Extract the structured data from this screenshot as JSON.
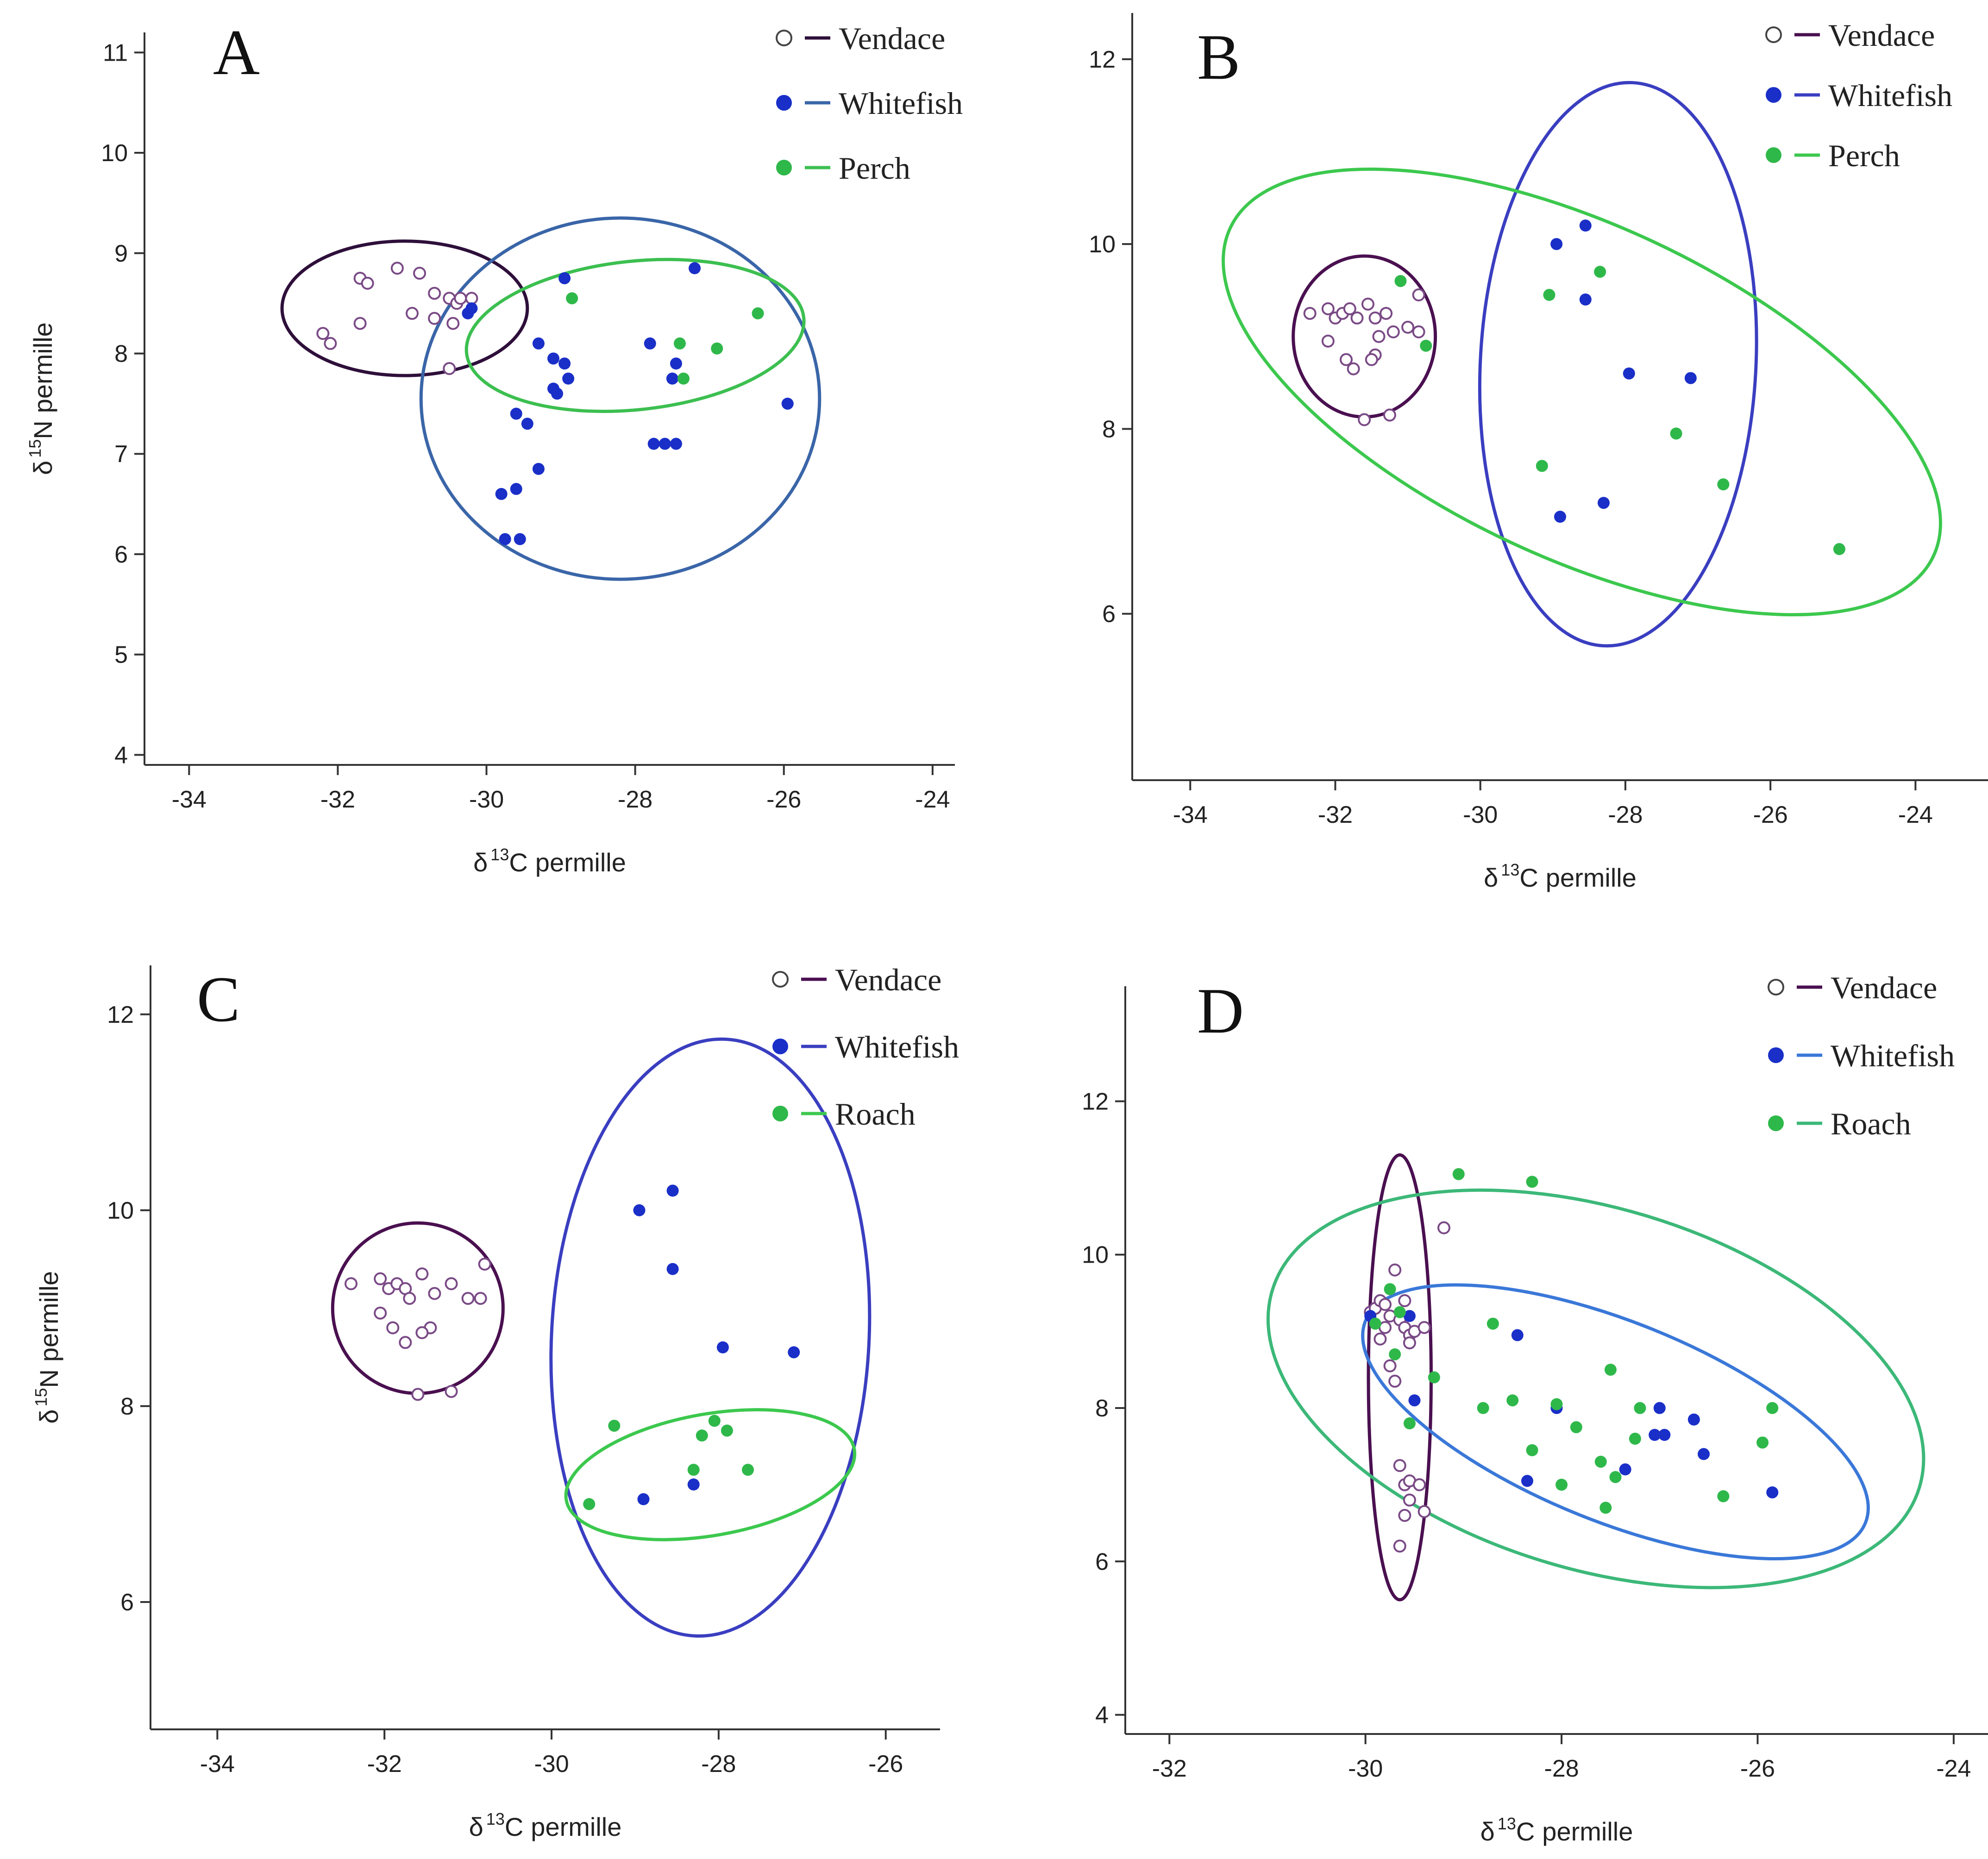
{
  "chart_data": [
    {
      "type": "scatter",
      "panel": "A",
      "xlabel": "permille",
      "ylabel": "permille",
      "xlabel_symbol": "δ",
      "xlabel_isotope_mass": "13",
      "xlabel_element": "C",
      "ylabel_symbol": "δ",
      "ylabel_isotope_mass": "15",
      "ylabel_element": "N",
      "xlim": [
        -34.6,
        -23.7
      ],
      "ylim": [
        3.9,
        11.2
      ],
      "xticks": [
        -34,
        -32,
        -30,
        -28,
        -26,
        -24
      ],
      "yticks": [
        4,
        5,
        6,
        7,
        8,
        9,
        10,
        11
      ],
      "legend_position": "top-right",
      "series": [
        {
          "name": "Vendace",
          "marker": "open",
          "color": "#7a4a86",
          "ellipse_color": "#2e0f3a",
          "ellipse": {
            "cx": -31.1,
            "cy": 8.45,
            "rx": 1.65,
            "ry": 0.67,
            "angle": 0
          },
          "points": [
            [
              -32.2,
              8.2
            ],
            [
              -32.1,
              8.1
            ],
            [
              -31.7,
              8.75
            ],
            [
              -31.6,
              8.7
            ],
            [
              -31.7,
              8.3
            ],
            [
              -31.2,
              8.85
            ],
            [
              -31.0,
              8.4
            ],
            [
              -30.9,
              8.8
            ],
            [
              -30.7,
              8.35
            ],
            [
              -30.7,
              8.6
            ],
            [
              -30.5,
              8.55
            ],
            [
              -30.45,
              8.3
            ],
            [
              -30.4,
              8.5
            ],
            [
              -30.35,
              8.55
            ],
            [
              -30.2,
              8.55
            ],
            [
              -30.5,
              7.85
            ]
          ]
        },
        {
          "name": "Whitefish",
          "marker": "filled",
          "color": "#1a2fc8",
          "ellipse_color": "#3a65a8",
          "ellipse": {
            "cx": -28.2,
            "cy": 7.55,
            "rx": 2.68,
            "ry": 1.8,
            "angle": 0
          },
          "points": [
            [
              -30.25,
              8.4
            ],
            [
              -30.2,
              8.45
            ],
            [
              -28.95,
              8.75
            ],
            [
              -29.3,
              8.1
            ],
            [
              -29.1,
              7.95
            ],
            [
              -28.95,
              7.9
            ],
            [
              -28.9,
              7.75
            ],
            [
              -29.1,
              7.65
            ],
            [
              -29.05,
              7.6
            ],
            [
              -29.6,
              7.4
            ],
            [
              -29.45,
              7.3
            ],
            [
              -29.3,
              6.85
            ],
            [
              -29.6,
              6.65
            ],
            [
              -29.8,
              6.6
            ],
            [
              -29.75,
              6.15
            ],
            [
              -29.55,
              6.15
            ],
            [
              -27.8,
              8.1
            ],
            [
              -27.45,
              7.9
            ],
            [
              -27.5,
              7.75
            ],
            [
              -27.75,
              7.1
            ],
            [
              -27.6,
              7.1
            ],
            [
              -27.45,
              7.1
            ],
            [
              -27.2,
              8.85
            ],
            [
              -25.95,
              7.5
            ]
          ]
        },
        {
          "name": "Perch",
          "marker": "filled",
          "color": "#2fb84a",
          "ellipse_color": "#3cbf50",
          "ellipse": {
            "cx": -28.0,
            "cy": 8.18,
            "rx": 2.28,
            "ry": 0.74,
            "angle": -6
          },
          "points": [
            [
              -28.85,
              8.55
            ],
            [
              -27.4,
              8.1
            ],
            [
              -27.35,
              7.75
            ],
            [
              -26.9,
              8.05
            ],
            [
              -26.35,
              8.4
            ]
          ]
        }
      ]
    },
    {
      "type": "scatter",
      "panel": "B",
      "xlabel": "permille",
      "ylabel": "",
      "xlabel_symbol": "δ",
      "xlabel_isotope_mass": "13",
      "xlabel_element": "C",
      "xlim": [
        -34.8,
        -23.0
      ],
      "ylim": [
        4.2,
        12.5
      ],
      "xticks": [
        -34,
        -32,
        -30,
        -28,
        -26,
        -24
      ],
      "yticks": [
        6,
        8,
        10,
        12
      ],
      "legend_position": "top-right",
      "series": [
        {
          "name": "Vendace",
          "marker": "open",
          "color": "#7a4a86",
          "ellipse_color": "#4a1050",
          "ellipse": {
            "cx": -31.6,
            "cy": 9.0,
            "rx": 0.98,
            "ry": 0.87,
            "angle": 0
          },
          "points": [
            [
              -32.35,
              9.25
            ],
            [
              -32.1,
              9.3
            ],
            [
              -32.0,
              9.2
            ],
            [
              -31.9,
              9.25
            ],
            [
              -31.8,
              9.3
            ],
            [
              -31.7,
              9.2
            ],
            [
              -31.55,
              9.35
            ],
            [
              -31.45,
              9.2
            ],
            [
              -31.3,
              9.25
            ],
            [
              -31.2,
              9.05
            ],
            [
              -31.0,
              9.1
            ],
            [
              -30.85,
              9.05
            ],
            [
              -30.85,
              9.45
            ],
            [
              -31.4,
              9.0
            ],
            [
              -31.45,
              8.8
            ],
            [
              -31.5,
              8.75
            ],
            [
              -31.85,
              8.75
            ],
            [
              -31.75,
              8.65
            ],
            [
              -32.1,
              8.95
            ],
            [
              -31.25,
              8.15
            ],
            [
              -31.6,
              8.1
            ]
          ]
        },
        {
          "name": "Whitefish",
          "marker": "filled",
          "color": "#1a2fc8",
          "ellipse_color": "#3a3ec0",
          "ellipse": {
            "cx": -28.1,
            "cy": 8.7,
            "rx": 1.9,
            "ry": 3.05,
            "angle": 3
          },
          "points": [
            [
              -28.95,
              10.0
            ],
            [
              -28.55,
              10.2
            ],
            [
              -28.55,
              9.4
            ],
            [
              -27.95,
              8.6
            ],
            [
              -27.1,
              8.55
            ],
            [
              -28.3,
              7.2
            ],
            [
              -28.9,
              7.05
            ]
          ]
        },
        {
          "name": "Perch",
          "marker": "filled",
          "color": "#2fb84a",
          "ellipse_color": "#3cc84e",
          "ellipse": {
            "cx": -28.6,
            "cy": 8.4,
            "rx": 5.35,
            "ry": 1.8,
            "angle": 25
          },
          "points": [
            [
              -31.1,
              9.6
            ],
            [
              -30.75,
              8.9
            ],
            [
              -29.05,
              9.45
            ],
            [
              -28.35,
              9.7
            ],
            [
              -27.3,
              7.95
            ],
            [
              -26.65,
              7.4
            ],
            [
              -29.15,
              7.6
            ],
            [
              -25.05,
              6.7
            ]
          ]
        }
      ]
    },
    {
      "type": "scatter",
      "panel": "C",
      "xlabel": "permille",
      "ylabel": "permille",
      "xlabel_symbol": "δ",
      "xlabel_isotope_mass": "13",
      "xlabel_element": "C",
      "ylabel_symbol": "δ",
      "ylabel_isotope_mass": "15",
      "ylabel_element": "N",
      "xlim": [
        -34.8,
        -25.35
      ],
      "ylim": [
        4.7,
        12.5
      ],
      "xticks": [
        -34,
        -32,
        -30,
        -28,
        -26
      ],
      "yticks": [
        6,
        8,
        10,
        12
      ],
      "legend_position": "top-right",
      "series": [
        {
          "name": "Vendace",
          "marker": "open",
          "color": "#7a4a86",
          "ellipse_color": "#4a1050",
          "ellipse": {
            "cx": -31.6,
            "cy": 9.0,
            "rx": 1.02,
            "ry": 0.87,
            "angle": 0
          },
          "points": [
            [
              -32.4,
              9.25
            ],
            [
              -32.05,
              9.3
            ],
            [
              -31.95,
              9.2
            ],
            [
              -31.85,
              9.25
            ],
            [
              -31.75,
              9.2
            ],
            [
              -31.55,
              9.35
            ],
            [
              -31.4,
              9.15
            ],
            [
              -31.2,
              9.25
            ],
            [
              -31.0,
              9.1
            ],
            [
              -30.85,
              9.1
            ],
            [
              -30.8,
              9.45
            ],
            [
              -31.45,
              8.8
            ],
            [
              -31.55,
              8.75
            ],
            [
              -31.9,
              8.8
            ],
            [
              -31.75,
              8.65
            ],
            [
              -32.05,
              8.95
            ],
            [
              -31.7,
              9.1
            ],
            [
              -31.2,
              8.15
            ],
            [
              -31.6,
              8.12
            ]
          ]
        },
        {
          "name": "Whitefish",
          "marker": "filled",
          "color": "#1a2fc8",
          "ellipse_color": "#3a3ec0",
          "ellipse": {
            "cx": -28.1,
            "cy": 8.7,
            "rx": 1.9,
            "ry": 3.05,
            "angle": 3
          },
          "points": [
            [
              -28.95,
              10.0
            ],
            [
              -28.55,
              10.2
            ],
            [
              -28.55,
              9.4
            ],
            [
              -27.95,
              8.6
            ],
            [
              -27.1,
              8.55
            ],
            [
              -28.3,
              7.2
            ],
            [
              -28.9,
              7.05
            ]
          ]
        },
        {
          "name": "Roach",
          "marker": "filled",
          "color": "#2fb84a",
          "ellipse_color": "#3cc84e",
          "ellipse": {
            "cx": -28.1,
            "cy": 7.3,
            "rx": 1.75,
            "ry": 0.62,
            "angle": -10
          },
          "points": [
            [
              -29.25,
              7.8
            ],
            [
              -28.2,
              7.7
            ],
            [
              -28.05,
              7.85
            ],
            [
              -27.9,
              7.75
            ],
            [
              -27.65,
              7.35
            ],
            [
              -28.3,
              7.35
            ],
            [
              -29.55,
              7.0
            ]
          ]
        }
      ]
    },
    {
      "type": "scatter",
      "panel": "D",
      "xlabel": "permille",
      "ylabel": "",
      "xlabel_symbol": "δ",
      "xlabel_isotope_mass": "13",
      "xlabel_element": "C",
      "xlim": [
        -32.45,
        -23.65
      ],
      "ylim": [
        3.75,
        13.5
      ],
      "xticks": [
        -32,
        -30,
        -28,
        -26,
        -24
      ],
      "yticks": [
        4,
        6,
        8,
        10,
        12
      ],
      "legend_position": "top-right",
      "series": [
        {
          "name": "Vendace",
          "marker": "open",
          "color": "#7a4a86",
          "ellipse_color": "#4a1050",
          "ellipse": {
            "cx": -29.65,
            "cy": 8.4,
            "rx": 0.32,
            "ry": 2.9,
            "angle": 0
          },
          "points": [
            [
              -29.95,
              9.25
            ],
            [
              -29.9,
              9.3
            ],
            [
              -29.85,
              9.4
            ],
            [
              -29.8,
              9.35
            ],
            [
              -29.75,
              9.2
            ],
            [
              -29.7,
              9.8
            ],
            [
              -29.65,
              9.15
            ],
            [
              -29.6,
              9.05
            ],
            [
              -29.55,
              8.95
            ],
            [
              -29.5,
              9.0
            ],
            [
              -29.55,
              8.85
            ],
            [
              -29.6,
              9.4
            ],
            [
              -29.8,
              9.05
            ],
            [
              -29.75,
              8.55
            ],
            [
              -29.7,
              8.35
            ],
            [
              -29.65,
              7.25
            ],
            [
              -29.6,
              7.0
            ],
            [
              -29.55,
              6.8
            ],
            [
              -29.6,
              6.6
            ],
            [
              -29.65,
              6.2
            ],
            [
              -29.55,
              7.05
            ],
            [
              -29.45,
              7.0
            ],
            [
              -29.4,
              6.65
            ],
            [
              -29.2,
              10.35
            ],
            [
              -29.85,
              8.9
            ],
            [
              -29.4,
              9.05
            ]
          ]
        },
        {
          "name": "Whitefish",
          "marker": "filled",
          "color": "#1a2fc8",
          "ellipse_color": "#3a78d8",
          "ellipse": {
            "cx": -27.45,
            "cy": 7.82,
            "rx": 2.75,
            "ry": 1.3,
            "angle": 22
          },
          "points": [
            [
              -29.95,
              9.2
            ],
            [
              -29.55,
              9.2
            ],
            [
              -29.5,
              8.1
            ],
            [
              -28.45,
              8.95
            ],
            [
              -28.05,
              8.0
            ],
            [
              -27.0,
              8.0
            ],
            [
              -26.95,
              7.65
            ],
            [
              -27.05,
              7.65
            ],
            [
              -26.65,
              7.85
            ],
            [
              -26.55,
              7.4
            ],
            [
              -27.35,
              7.2
            ],
            [
              -28.35,
              7.05
            ],
            [
              -25.85,
              6.9
            ]
          ]
        },
        {
          "name": "Roach",
          "marker": "filled",
          "color": "#2fb84a",
          "ellipse_color": "#3cb878",
          "ellipse": {
            "cx": -27.65,
            "cy": 8.25,
            "rx": 3.45,
            "ry": 2.35,
            "angle": 17
          },
          "points": [
            [
              -29.05,
              11.05
            ],
            [
              -28.3,
              10.95
            ],
            [
              -29.9,
              9.1
            ],
            [
              -29.75,
              9.55
            ],
            [
              -29.65,
              9.25
            ],
            [
              -29.3,
              8.4
            ],
            [
              -29.7,
              8.7
            ],
            [
              -29.55,
              7.8
            ],
            [
              -28.7,
              9.1
            ],
            [
              -28.8,
              8.0
            ],
            [
              -28.5,
              8.1
            ],
            [
              -28.05,
              8.05
            ],
            [
              -28.3,
              7.45
            ],
            [
              -27.85,
              7.75
            ],
            [
              -27.6,
              7.3
            ],
            [
              -27.25,
              7.6
            ],
            [
              -27.5,
              8.5
            ],
            [
              -27.2,
              8.0
            ],
            [
              -28.0,
              7.0
            ],
            [
              -27.45,
              7.1
            ],
            [
              -27.55,
              6.7
            ],
            [
              -26.35,
              6.85
            ],
            [
              -25.95,
              7.55
            ],
            [
              -25.85,
              8.0
            ]
          ]
        }
      ]
    }
  ]
}
